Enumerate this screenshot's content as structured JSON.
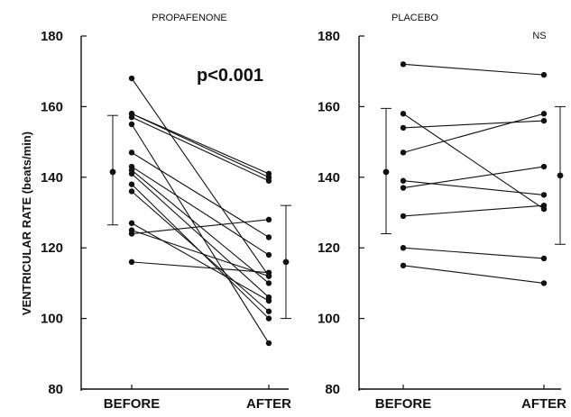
{
  "chart_data": [
    {
      "type": "line",
      "title": "PROPAFENONE",
      "ylabel": "VENTRICULAR RATE (beats/min)",
      "categories": [
        "BEFORE",
        "AFTER"
      ],
      "ylim": [
        80,
        180
      ],
      "yticks": [
        80,
        100,
        120,
        140,
        160,
        180
      ],
      "annotation": "p<0.001",
      "series": [
        {
          "values": [
            168,
            112
          ]
        },
        {
          "values": [
            158,
            141
          ]
        },
        {
          "values": [
            158,
            140
          ]
        },
        {
          "values": [
            157,
            139
          ]
        },
        {
          "values": [
            155,
            93
          ]
        },
        {
          "values": [
            147,
            123
          ]
        },
        {
          "values": [
            143,
            118
          ]
        },
        {
          "values": [
            142,
            110
          ]
        },
        {
          "values": [
            141,
            106
          ]
        },
        {
          "values": [
            138,
            100
          ]
        },
        {
          "values": [
            136,
            102
          ]
        },
        {
          "values": [
            127,
            105
          ]
        },
        {
          "values": [
            125,
            112
          ]
        },
        {
          "values": [
            124,
            128
          ]
        },
        {
          "values": [
            116,
            113
          ]
        }
      ],
      "summary": [
        {
          "x": "BEFORE",
          "mean": 141.5,
          "low": 126.5,
          "high": 157.5
        },
        {
          "x": "AFTER",
          "mean": 116,
          "low": 100,
          "high": 132
        }
      ]
    },
    {
      "type": "line",
      "title": "PLACEBO",
      "categories": [
        "BEFORE",
        "AFTER"
      ],
      "ylim": [
        80,
        180
      ],
      "yticks": [
        80,
        100,
        120,
        140,
        160,
        180
      ],
      "annotation": "NS",
      "series": [
        {
          "values": [
            172,
            169
          ]
        },
        {
          "values": [
            158,
            131
          ]
        },
        {
          "values": [
            154,
            156
          ]
        },
        {
          "values": [
            147,
            158
          ]
        },
        {
          "values": [
            139,
            135
          ]
        },
        {
          "values": [
            137,
            143
          ]
        },
        {
          "values": [
            129,
            132
          ]
        },
        {
          "values": [
            120,
            117
          ]
        },
        {
          "values": [
            115,
            110
          ]
        }
      ],
      "summary": [
        {
          "x": "BEFORE",
          "mean": 141.5,
          "low": 124,
          "high": 159.5
        },
        {
          "x": "AFTER",
          "mean": 140.5,
          "low": 121,
          "high": 160
        }
      ]
    }
  ]
}
